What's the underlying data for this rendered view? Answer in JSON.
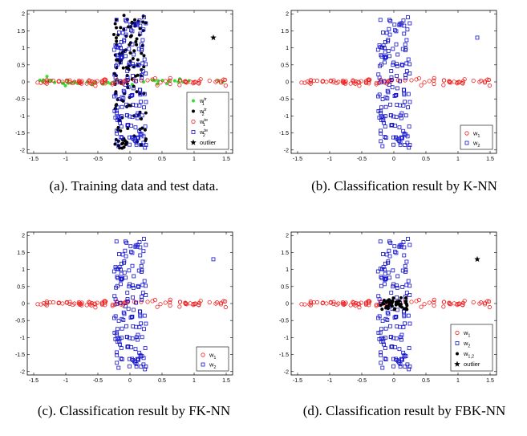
{
  "figure": {
    "captions": {
      "a": "(a). Training data and test data.",
      "b": "(b). Classification result by K-NN",
      "c": "(c). Classification result by FK-NN",
      "d": "(d). Classification result by FBK-NN"
    }
  },
  "chart_data": [
    {
      "id": "a",
      "type": "scatter",
      "xlim": [
        -1.6,
        1.6
      ],
      "ylim": [
        -2.1,
        2.1
      ],
      "xticks": [
        "-1.5",
        "-1",
        "-0.5",
        "0",
        "0.5",
        "1",
        "1.5"
      ],
      "yticks": [
        "2",
        "1.5",
        "1",
        "0.5",
        "0",
        "-0.5",
        "-1",
        "-1.5",
        "-2"
      ],
      "legend_position": "bottom-right",
      "series": [
        {
          "name": "w1 tr",
          "base": "w",
          "sub": "1",
          "sup": "tr",
          "marker": "dot",
          "color": "#33dd33",
          "shape": "horizontal",
          "n": 45,
          "seed": 11
        },
        {
          "name": "w2 tr",
          "base": "w",
          "sub": "2",
          "sup": "tr",
          "marker": "dot",
          "color": "#000000",
          "shape": "vertical",
          "n": 130,
          "seed": 23
        },
        {
          "name": "w1 te",
          "base": "w",
          "sub": "1",
          "sup": "te",
          "marker": "circle",
          "color": "#ee2222",
          "shape": "horizontal",
          "n": 95,
          "seed": 37
        },
        {
          "name": "w2 te",
          "base": "w",
          "sub": "2",
          "sup": "te",
          "marker": "square",
          "color": "#1111cc",
          "shape": "vertical",
          "n": 150,
          "seed": 53
        },
        {
          "name": "outlier",
          "base": "outlier",
          "marker": "star",
          "color": "#000000",
          "points": [
            [
              1.3,
              1.3
            ]
          ]
        }
      ]
    },
    {
      "id": "b",
      "type": "scatter",
      "xlim": [
        -1.6,
        1.6
      ],
      "ylim": [
        -2.1,
        2.1
      ],
      "xticks": [
        "-1.5",
        "-1",
        "-0.5",
        "0",
        "0.5",
        "1",
        "1.5"
      ],
      "yticks": [
        "2",
        "1.5",
        "1",
        "0.5",
        "0",
        "-0.5",
        "-1",
        "-1.5",
        "-2"
      ],
      "legend_position": "bottom-right",
      "series": [
        {
          "name": "w1",
          "base": "w",
          "sub": "1",
          "marker": "circle",
          "color": "#ee2222",
          "shape": "horizontal",
          "n": 95,
          "seed": 37
        },
        {
          "name": "w2",
          "base": "w",
          "sub": "2",
          "marker": "square",
          "color": "#1111cc",
          "shape": "vertical",
          "n": 150,
          "seed": 53,
          "extra": [
            [
              1.3,
              1.3
            ]
          ]
        }
      ]
    },
    {
      "id": "c",
      "type": "scatter",
      "xlim": [
        -1.6,
        1.6
      ],
      "ylim": [
        -2.1,
        2.1
      ],
      "xticks": [
        "-1.5",
        "-1",
        "-0.5",
        "0",
        "0.5",
        "1",
        "1.5"
      ],
      "yticks": [
        "2",
        "1.5",
        "1",
        "0.5",
        "0",
        "-0.5",
        "-1",
        "-1.5",
        "-2"
      ],
      "legend_position": "bottom-right",
      "series": [
        {
          "name": "w1",
          "base": "w",
          "sub": "1",
          "marker": "circle",
          "color": "#ee2222",
          "shape": "horizontal",
          "n": 95,
          "seed": 37
        },
        {
          "name": "w2",
          "base": "w",
          "sub": "2",
          "marker": "square",
          "color": "#1111cc",
          "shape": "vertical",
          "n": 150,
          "seed": 53,
          "extra": [
            [
              1.3,
              1.3
            ]
          ]
        }
      ]
    },
    {
      "id": "d",
      "type": "scatter",
      "xlim": [
        -1.6,
        1.6
      ],
      "ylim": [
        -2.1,
        2.1
      ],
      "xticks": [
        "-1.5",
        "-1",
        "-0.5",
        "0",
        "0.5",
        "1",
        "1.5"
      ],
      "yticks": [
        "2",
        "1.5",
        "1",
        "0.5",
        "0",
        "-0.5",
        "-1",
        "-1.5",
        "-2"
      ],
      "legend_position": "bottom-right",
      "series": [
        {
          "name": "w1",
          "base": "w",
          "sub": "1",
          "marker": "circle",
          "color": "#ee2222",
          "shape": "horizontal",
          "n": 90,
          "seed": 37
        },
        {
          "name": "w2",
          "base": "w",
          "sub": "2",
          "marker": "square",
          "color": "#1111cc",
          "shape": "vertical",
          "n": 140,
          "seed": 53
        },
        {
          "name": "w1,2",
          "base": "w",
          "sub": "1,2",
          "marker": "dot",
          "color": "#000000",
          "shape": "center",
          "n": 40,
          "seed": 71
        },
        {
          "name": "outlier",
          "base": "outlier",
          "marker": "star",
          "color": "#000000",
          "points": [
            [
              1.3,
              1.3
            ]
          ]
        }
      ]
    }
  ]
}
